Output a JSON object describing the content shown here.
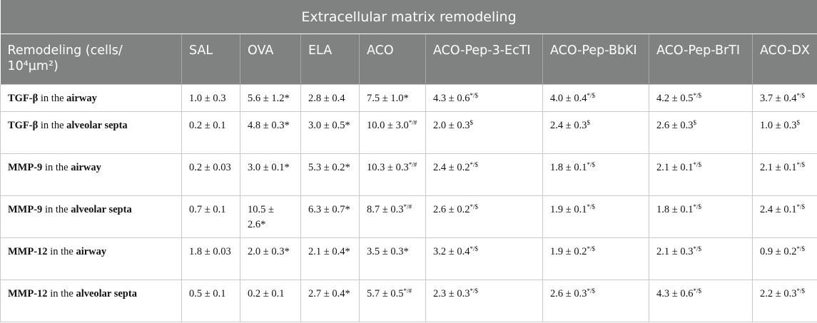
{
  "table": {
    "caption": "Extracellular matrix remodeling",
    "headers": [
      "Remodeling (cells/",
      "10⁴µm²)",
      "SAL",
      "OVA",
      "ELA",
      "ACO",
      "ACO-Pep-3-EcTI",
      "ACO-Pep-BbKI",
      "ACO-Pep-BrTI",
      "ACO-DX"
    ],
    "rows": [
      {
        "marker": "TGF-β",
        "mid": " in the ",
        "location": "airway",
        "cells": [
          {
            "v": "1.0 ± 0.3",
            "s": ""
          },
          {
            "v": "5.6 ± 1.2*",
            "s": ""
          },
          {
            "v": "2.8 ± 0.4",
            "s": ""
          },
          {
            "v": "7.5 ± 1.0*",
            "s": ""
          },
          {
            "v": "4.3 ± 0.6",
            "s": "*/$"
          },
          {
            "v": "4.0 ± 0.4",
            "s": "*/$"
          },
          {
            "v": "4.2 ± 0.5",
            "s": "*/$"
          },
          {
            "v": "3.7 ± 0.4",
            "s": "*/$"
          }
        ]
      },
      {
        "marker": "TGF-β",
        "mid": " in the ",
        "location": "alveolar septa",
        "cells": [
          {
            "v": "0.2 ± 0.1",
            "s": ""
          },
          {
            "v": "4.8 ± 0.3*",
            "s": ""
          },
          {
            "v": "3.0 ± 0.5*",
            "s": ""
          },
          {
            "v": "10.0 ± 3.0",
            "s": "*/#"
          },
          {
            "v": "2.0 ± 0.3",
            "s": "$"
          },
          {
            "v": "2.4 ± 0.3",
            "s": "$"
          },
          {
            "v": "2.6 ± 0.3",
            "s": "$"
          },
          {
            "v": "1.0 ± 0.3",
            "s": "$"
          }
        ]
      },
      {
        "marker": "MMP-9",
        "mid": " in the ",
        "location": "airway",
        "cells": [
          {
            "v": "0.2 ± 0.03",
            "s": ""
          },
          {
            "v": "3.0 ± 0.1*",
            "s": ""
          },
          {
            "v": "5.3 ± 0.2*",
            "s": ""
          },
          {
            "v": "10.3 ± 0.3",
            "s": "*/#"
          },
          {
            "v": "2.4 ± 0.2",
            "s": "*/$"
          },
          {
            "v": "1.8 ± 0.1",
            "s": "*/$"
          },
          {
            "v": "2.1 ± 0.1",
            "s": "*/$"
          },
          {
            "v": "2.1 ± 0.1",
            "s": "*/$"
          }
        ]
      },
      {
        "marker": "MMP-9",
        "mid": " in the ",
        "location": "alveolar septa",
        "cells": [
          {
            "v": "0.7 ± 0.1",
            "s": ""
          },
          {
            "v": "10.5 ± 2.6*",
            "s": ""
          },
          {
            "v": "6.3 ± 0.7*",
            "s": ""
          },
          {
            "v": "8.7 ± 0.3",
            "s": "*/#"
          },
          {
            "v": "2.6 ± 0.2",
            "s": "*/$"
          },
          {
            "v": "1.9 ± 0.1",
            "s": "*/$"
          },
          {
            "v": "1.8 ± 0.1",
            "s": "*/$"
          },
          {
            "v": "2.4 ± 0.1",
            "s": "*/$"
          }
        ]
      },
      {
        "marker": "MMP-12",
        "mid": " in the ",
        "location": "airway",
        "cells": [
          {
            "v": "1.8 ± 0.03",
            "s": ""
          },
          {
            "v": "2.0 ± 0.3*",
            "s": ""
          },
          {
            "v": "2.1 ± 0.4*",
            "s": ""
          },
          {
            "v": "3.5 ± 0.3*",
            "s": ""
          },
          {
            "v": "3.2 ± 0.4",
            "s": "*/$"
          },
          {
            "v": "1.9 ± 0.2",
            "s": "*/$"
          },
          {
            "v": "2.1 ± 0.3",
            "s": "*/$"
          },
          {
            "v": "0.9 ± 0.2",
            "s": "*/$"
          }
        ]
      },
      {
        "marker": "MMP-12",
        "mid": " in the ",
        "location": "alveolar septa",
        "cells": [
          {
            "v": "0.5 ± 0.1",
            "s": ""
          },
          {
            "v": "0.2 ± 0.1",
            "s": ""
          },
          {
            "v": "2.7 ± 0.4*",
            "s": ""
          },
          {
            "v": "5.7 ± 0.5",
            "s": "*/#"
          },
          {
            "v": "2.3 ± 0.3",
            "s": "*/$"
          },
          {
            "v": "2.6 ± 0.3",
            "s": "*/$"
          },
          {
            "v": "4.3 ± 0.6",
            "s": "*/$"
          },
          {
            "v": "2.2 ± 0.3",
            "s": "*/$"
          }
        ]
      }
    ]
  }
}
